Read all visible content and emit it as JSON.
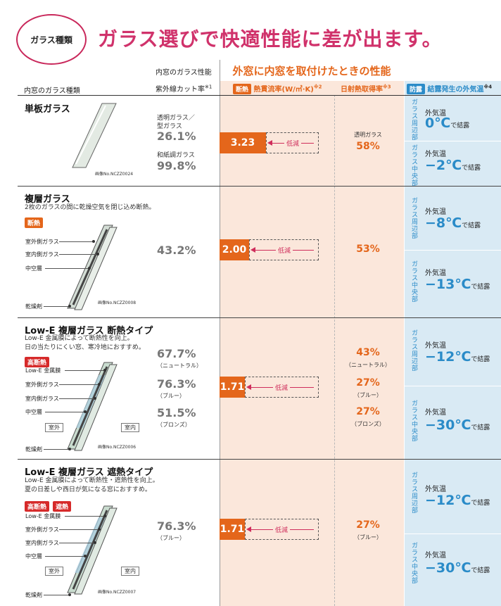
{
  "header": {
    "badge": "ガラス種類",
    "headline": "ガラス選びで快適性能に差が出ます。"
  },
  "columns": {
    "glass_type": "内窓のガラス種類",
    "inner_perf": "内窓のガラス性能",
    "uv_cut": "紫外線カット率",
    "uv_cut_note": "※1",
    "outer_title": "外窓に内窓を取付けたときの性能",
    "thermal_chip": "断熱",
    "thermal_label": "熱貫流率(W/㎡·K)",
    "thermal_note": "※2",
    "solar_label": "日射熱取得率",
    "solar_note": "※3",
    "condense_chip": "防露",
    "condense_label": "結露発生の外気温",
    "condense_note": "※4"
  },
  "rows": [
    {
      "title": "単板ガラス",
      "desc": [],
      "chips": [],
      "parts": [],
      "credit": "画像No.NCZZ0024",
      "uv": [
        {
          "label": "透明ガラス／",
          "label2": "型ガラス",
          "value": "26.1%"
        },
        {
          "label": "和紙調ガラス",
          "value": "99.8%"
        }
      ],
      "u_value": "3.23",
      "reduce": "低減",
      "solar": [
        {
          "value": "58%",
          "label": "透明ガラス"
        }
      ],
      "edge_label": "ガラス周辺部",
      "center_label": "ガラス中央部",
      "outside": "外気温",
      "edge_temp": "0℃",
      "center_temp": "−2℃",
      "condense_word": "で結露"
    },
    {
      "title": "複層ガラス",
      "desc": [
        "2枚のガラスの間に乾燥空気を閉じ込め断熱。"
      ],
      "chips": [
        "断熱"
      ],
      "parts": [
        "室外側ガラス",
        "室内側ガラス",
        "中空層",
        "乾燥剤"
      ],
      "credit": "画像No.NCZZ0008",
      "uv": [
        {
          "value": "43.2%"
        }
      ],
      "u_value": "2.00",
      "reduce": "低減",
      "solar": [
        {
          "value": "53%"
        }
      ],
      "edge_label": "ガラス周辺部",
      "center_label": "ガラス中央部",
      "outside": "外気温",
      "edge_temp": "−8℃",
      "center_temp": "−13℃",
      "condense_word": "で結露"
    },
    {
      "title": "Low-E 複層ガラス 断熱タイプ",
      "desc": [
        "Low-E 金属膜によって断熱性を向上。",
        "日の当たりにくい窓、寒冷地におすすめ。"
      ],
      "chips": [
        "高断熱"
      ],
      "parts": [
        "Low-E 金属膜",
        "室外側ガラス",
        "室内側ガラス",
        "中空層",
        "乾燥剤"
      ],
      "outside_room": "室外",
      "inside_room": "室内",
      "credit": "画像No.NCZZ0006",
      "uv": [
        {
          "value": "67.7%",
          "note": "（ニュートラル）"
        },
        {
          "value": "76.3%",
          "note": "（ブルー）"
        },
        {
          "value": "51.5%",
          "note": "（ブロンズ）"
        }
      ],
      "u_value": "1.71",
      "reduce": "低減",
      "solar": [
        {
          "value": "43%",
          "note": "（ニュートラル）"
        },
        {
          "value": "27%",
          "note": "（ブルー）"
        },
        {
          "value": "27%",
          "note": "（ブロンズ）"
        }
      ],
      "edge_label": "ガラス周辺部",
      "center_label": "ガラス中央部",
      "outside": "外気温",
      "edge_temp": "−12℃",
      "center_temp": "−30℃",
      "condense_word": "で結露"
    },
    {
      "title": "Low-E 複層ガラス 遮熱タイプ",
      "desc": [
        "Low-E 金属膜によって断熱性・遮熱性を向上。",
        "夏の日差しや西日が気になる窓におすすめ。"
      ],
      "chips": [
        "高断熱",
        "遮熱"
      ],
      "parts": [
        "Low-E 金属膜",
        "室外側ガラス",
        "室内側ガラス",
        "中空層",
        "乾燥剤"
      ],
      "outside_room": "室外",
      "inside_room": "室内",
      "credit": "画像No.NCZZ0007",
      "uv": [
        {
          "value": "76.3%",
          "note": "（ブルー）"
        }
      ],
      "u_value": "1.71",
      "reduce": "低減",
      "solar": [
        {
          "value": "27%",
          "note": "（ブルー）"
        }
      ],
      "edge_label": "ガラス周辺部",
      "center_label": "ガラス中央部",
      "outside": "外気温",
      "edge_temp": "−12℃",
      "center_temp": "−30℃",
      "condense_word": "で結露"
    }
  ],
  "colors": {
    "accent_pink": "#d0326b",
    "orange": "#e4661b",
    "blue": "#2a8bc8",
    "peach_bg": "#fbe7db",
    "blue_bg": "#d9eaf4"
  }
}
